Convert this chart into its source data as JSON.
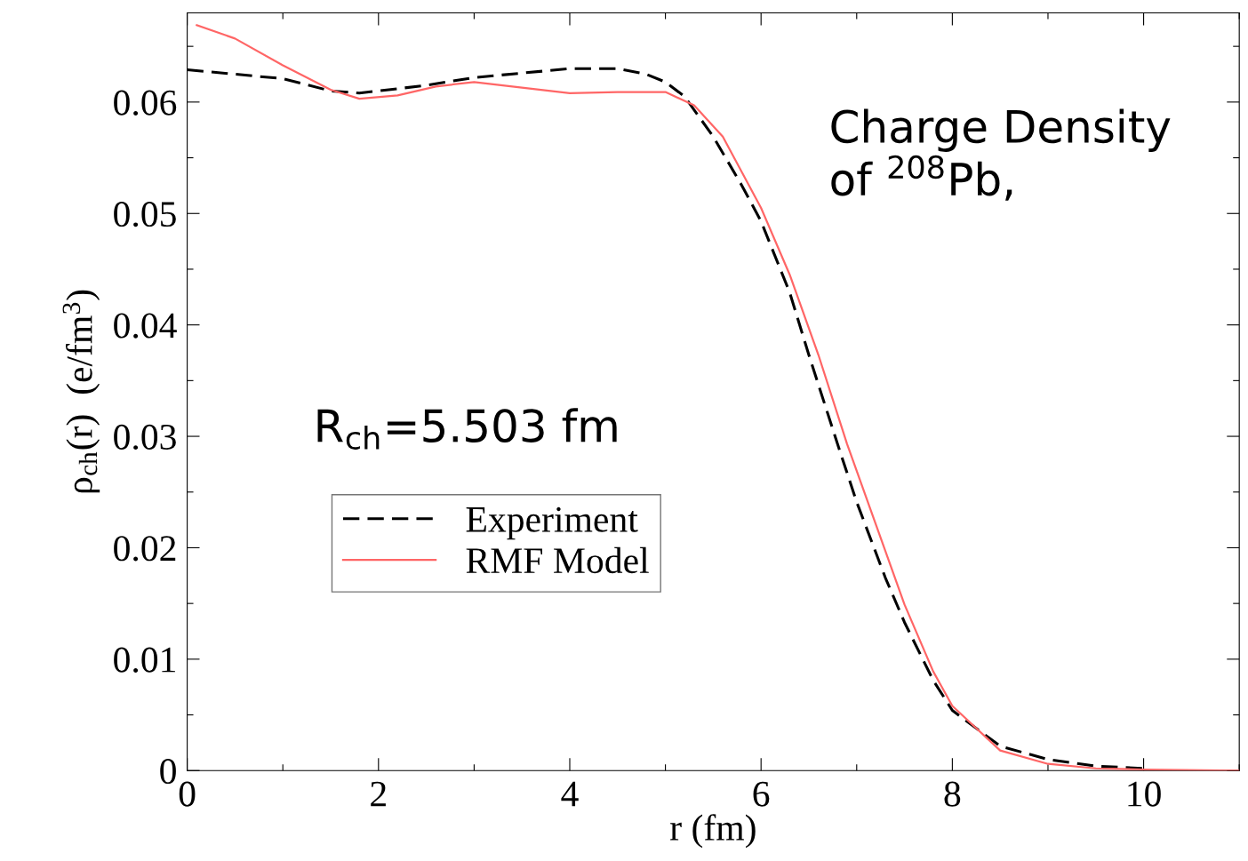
{
  "chart_data": {
    "type": "line",
    "xlabel": "r (fm)",
    "ylabel": "ρ$_{ch}$(r)  (e/fm$^{3}$)",
    "annotations": [
      "Charge Density\nof $^{208}$Pb,",
      "R$_{ch}$=5.503 fm"
    ],
    "legend": "center left",
    "grid": false,
    "marker": "none",
    "xlim": [
      0,
      11
    ],
    "ylim": [
      0,
      0.068
    ],
    "xticks": [
      0,
      {
        "value": 1,
        "label": null
      },
      2,
      {
        "value": 3,
        "label": null
      },
      4,
      {
        "value": 5,
        "label": null
      },
      6,
      {
        "value": 7,
        "label": null
      },
      8,
      {
        "value": 9,
        "label": null
      },
      10,
      {
        "value": 11,
        "label": null
      }
    ],
    "yticks": [
      0,
      {
        "value": 0.005,
        "label": null
      },
      0.01,
      {
        "value": 0.015,
        "label": null
      },
      0.02,
      {
        "value": 0.025,
        "label": null
      },
      0.03,
      {
        "value": 0.035,
        "label": null
      },
      0.04,
      {
        "value": 0.045,
        "label": null
      },
      0.05,
      {
        "value": 0.055,
        "label": null
      },
      0.06,
      {
        "value": 0.065,
        "label": null
      }
    ],
    "series": [
      {
        "name": "Experiment",
        "color": "#000000",
        "line_style": "dashed",
        "x": [
          0,
          1,
          1.5,
          1.8,
          2.5,
          3,
          4,
          4.5,
          4.8,
          5.0,
          5.2,
          5.5,
          5.8,
          6.0,
          6.3,
          6.5,
          6.8,
          7.0,
          7.3,
          7.5,
          7.8,
          8,
          8.5,
          9,
          9.5,
          10
        ],
        "values": [
          0.0629,
          0.0621,
          0.061,
          0.0608,
          0.0615,
          0.0622,
          0.063,
          0.063,
          0.0625,
          0.0618,
          0.0605,
          0.0569,
          0.0525,
          0.0493,
          0.0429,
          0.0373,
          0.0293,
          0.0241,
          0.0173,
          0.0133,
          0.0081,
          0.0054,
          0.0022,
          0.001,
          0.0004,
          0.0002
        ]
      },
      {
        "name": "RMF Model",
        "color": "#ff6666",
        "line_style": "solid",
        "x": [
          0.1,
          0.5,
          1,
          1.5,
          1.8,
          2.2,
          2.6,
          3.0,
          3.5,
          4,
          4.5,
          5.0,
          5.3,
          5.6,
          6.0,
          6.3,
          6.6,
          6.9,
          7.2,
          7.5,
          7.8,
          8,
          8.5,
          9,
          9.5,
          10,
          11
        ],
        "values": [
          0.0669,
          0.0657,
          0.0633,
          0.0611,
          0.0603,
          0.0606,
          0.0614,
          0.0618,
          0.0613,
          0.0608,
          0.0609,
          0.0609,
          0.0597,
          0.0569,
          0.0505,
          0.0445,
          0.0373,
          0.0293,
          0.0221,
          0.0149,
          0.0089,
          0.0058,
          0.0018,
          0.0006,
          0.0002,
          0.0001,
          0
        ]
      }
    ]
  }
}
